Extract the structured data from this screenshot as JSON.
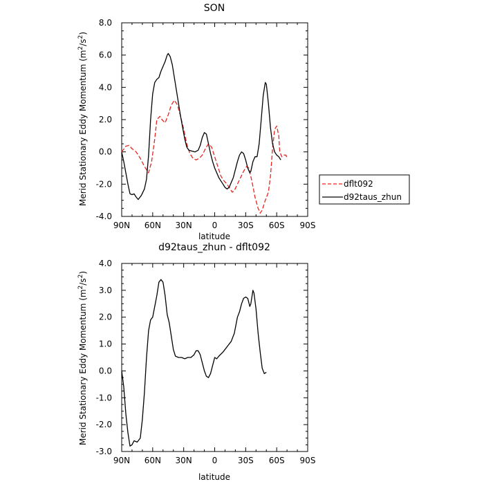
{
  "chart_data": [
    {
      "type": "line",
      "title": "SON",
      "xlabel": "latitude",
      "ylabel_main": "Merid Stationary Eddy Momentum (m",
      "ylabel_sup1": "2",
      "ylabel_mid": "/s",
      "ylabel_sup2": "2",
      "ylabel_end": ")",
      "xlim": [
        90,
        -90
      ],
      "ylim": [
        -4,
        8
      ],
      "x_ticks": [
        90,
        60,
        30,
        0,
        -30,
        -60,
        -90
      ],
      "x_tick_labels": [
        "90N",
        "60N",
        "30N",
        "0",
        "30S",
        "60S",
        "90S"
      ],
      "y_ticks": [
        -4,
        -2,
        0,
        2,
        4,
        6,
        8
      ],
      "y_tick_labels": [
        "-4.0",
        "-2.0",
        "0.0",
        "2.0",
        "4.0",
        "6.0",
        "8.0"
      ],
      "legend": {
        "placement": "right"
      },
      "series": [
        {
          "name": "dflt092",
          "color": "#e8231e",
          "dash": "dashed",
          "points": [
            [
              90,
              0
            ],
            [
              86,
              0.35
            ],
            [
              83,
              0.4
            ],
            [
              80,
              0.2
            ],
            [
              76,
              0.0
            ],
            [
              72,
              -0.4
            ],
            [
              68,
              -0.9
            ],
            [
              64,
              -1.3
            ],
            [
              61,
              -0.6
            ],
            [
              58,
              0.8
            ],
            [
              56,
              2.0
            ],
            [
              53,
              2.2
            ],
            [
              51,
              2.0
            ],
            [
              48,
              1.8
            ],
            [
              45,
              2.3
            ],
            [
              42,
              2.9
            ],
            [
              39,
              3.2
            ],
            [
              36,
              2.9
            ],
            [
              33,
              2.2
            ],
            [
              30,
              1.4
            ],
            [
              27,
              0.5
            ],
            [
              24,
              -0.1
            ],
            [
              21,
              -0.4
            ],
            [
              18,
              -0.5
            ],
            [
              15,
              -0.4
            ],
            [
              12,
              -0.2
            ],
            [
              9,
              0.2
            ],
            [
              6,
              0.5
            ],
            [
              3,
              0.3
            ],
            [
              0,
              -0.3
            ],
            [
              -3,
              -0.9
            ],
            [
              -6,
              -1.5
            ],
            [
              -9,
              -1.8
            ],
            [
              -12,
              -2.0
            ],
            [
              -15,
              -2.3
            ],
            [
              -17,
              -2.5
            ],
            [
              -19,
              -2.4
            ],
            [
              -22,
              -2.0
            ],
            [
              -25,
              -1.6
            ],
            [
              -28,
              -1.2
            ],
            [
              -31,
              -0.9
            ],
            [
              -33,
              -1.0
            ],
            [
              -36,
              -1.8
            ],
            [
              -39,
              -2.8
            ],
            [
              -42,
              -3.5
            ],
            [
              -44,
              -3.8
            ],
            [
              -46,
              -3.6
            ],
            [
              -49,
              -3.0
            ],
            [
              -52,
              -2.5
            ],
            [
              -54,
              -1.5
            ],
            [
              -56,
              0.2
            ],
            [
              -58,
              1.4
            ],
            [
              -60,
              1.6
            ],
            [
              -62,
              1.0
            ],
            [
              -63,
              0.0
            ],
            [
              -65,
              -0.3
            ],
            [
              -67,
              -0.2
            ],
            [
              -69,
              -0.2
            ],
            [
              -70,
              -0.4
            ]
          ]
        },
        {
          "name": "d92taus_zhun",
          "color": "#000000",
          "dash": "solid",
          "points": [
            [
              90,
              0
            ],
            [
              88,
              -0.6
            ],
            [
              86,
              -1.3
            ],
            [
              84,
              -2.0
            ],
            [
              82,
              -2.6
            ],
            [
              80,
              -2.65
            ],
            [
              78,
              -2.6
            ],
            [
              76,
              -2.8
            ],
            [
              74,
              -2.95
            ],
            [
              71,
              -2.7
            ],
            [
              68,
              -2.3
            ],
            [
              66,
              -1.7
            ],
            [
              64,
              -0.2
            ],
            [
              62,
              2.0
            ],
            [
              60,
              3.6
            ],
            [
              58,
              4.3
            ],
            [
              56,
              4.5
            ],
            [
              54,
              4.6
            ],
            [
              52,
              5.0
            ],
            [
              50,
              5.3
            ],
            [
              48,
              5.6
            ],
            [
              46,
              6.0
            ],
            [
              45,
              6.1
            ],
            [
              43,
              5.9
            ],
            [
              41,
              5.4
            ],
            [
              39,
              4.6
            ],
            [
              37,
              3.8
            ],
            [
              35,
              3.0
            ],
            [
              33,
              2.2
            ],
            [
              31,
              1.5
            ],
            [
              29,
              0.8
            ],
            [
              27,
              0.3
            ],
            [
              25,
              0.1
            ],
            [
              22,
              0.05
            ],
            [
              19,
              0.0
            ],
            [
              16,
              0.1
            ],
            [
              14,
              0.4
            ],
            [
              12,
              0.9
            ],
            [
              10,
              1.2
            ],
            [
              8,
              1.1
            ],
            [
              6,
              0.5
            ],
            [
              4,
              -0.1
            ],
            [
              2,
              -0.6
            ],
            [
              0,
              -1.0
            ],
            [
              -2,
              -1.3
            ],
            [
              -4,
              -1.6
            ],
            [
              -6,
              -1.8
            ],
            [
              -8,
              -2.0
            ],
            [
              -10,
              -2.2
            ],
            [
              -12,
              -2.3
            ],
            [
              -14,
              -2.2
            ],
            [
              -16,
              -1.9
            ],
            [
              -18,
              -1.6
            ],
            [
              -20,
              -1.1
            ],
            [
              -22,
              -0.6
            ],
            [
              -24,
              -0.2
            ],
            [
              -26,
              0.0
            ],
            [
              -28,
              -0.1
            ],
            [
              -30,
              -0.5
            ],
            [
              -32,
              -1.0
            ],
            [
              -34,
              -1.3
            ],
            [
              -35,
              -1.2
            ],
            [
              -37,
              -0.6
            ],
            [
              -39,
              -0.3
            ],
            [
              -41,
              -0.3
            ],
            [
              -43,
              0.5
            ],
            [
              -45,
              2.0
            ],
            [
              -47,
              3.5
            ],
            [
              -49,
              4.3
            ],
            [
              -50,
              4.2
            ],
            [
              -52,
              3.0
            ],
            [
              -54,
              1.5
            ],
            [
              -56,
              0.5
            ],
            [
              -58,
              0.0
            ],
            [
              -60,
              -0.2
            ],
            [
              -62,
              -0.3
            ],
            [
              -64,
              -0.5
            ]
          ]
        }
      ]
    },
    {
      "type": "line",
      "title": "d92taus_zhun - dflt092",
      "xlabel": "latitude",
      "ylabel_main": "Merid Stationary Eddy Momentum (m",
      "ylabel_sup1": "2",
      "ylabel_mid": "/s",
      "ylabel_sup2": "2",
      "ylabel_end": ")",
      "xlim": [
        90,
        -90
      ],
      "ylim": [
        -3,
        4
      ],
      "x_ticks": [
        90,
        60,
        30,
        0,
        -30,
        -60,
        -90
      ],
      "x_tick_labels": [
        "90N",
        "60N",
        "30N",
        "0",
        "30S",
        "60S",
        "90S"
      ],
      "y_ticks": [
        -3,
        -2,
        -1,
        0,
        1,
        2,
        3,
        4
      ],
      "y_tick_labels": [
        "-3.0",
        "-2.0",
        "-1.0",
        "0.0",
        "1.0",
        "2.0",
        "3.0",
        "4.0"
      ],
      "series": [
        {
          "color": "#000000",
          "dash": "solid",
          "points": [
            [
              90,
              0
            ],
            [
              88,
              -0.6
            ],
            [
              86,
              -1.6
            ],
            [
              84,
              -2.3
            ],
            [
              82,
              -2.8
            ],
            [
              80,
              -2.75
            ],
            [
              78,
              -2.6
            ],
            [
              75,
              -2.65
            ],
            [
              72,
              -2.5
            ],
            [
              70,
              -1.8
            ],
            [
              68,
              -0.8
            ],
            [
              66,
              0.5
            ],
            [
              64,
              1.5
            ],
            [
              62,
              1.9
            ],
            [
              60,
              2.0
            ],
            [
              58,
              2.4
            ],
            [
              56,
              2.8
            ],
            [
              54,
              3.3
            ],
            [
              52,
              3.4
            ],
            [
              50,
              3.3
            ],
            [
              48,
              2.8
            ],
            [
              46,
              2.1
            ],
            [
              44,
              1.8
            ],
            [
              42,
              1.3
            ],
            [
              40,
              0.8
            ],
            [
              38,
              0.55
            ],
            [
              35,
              0.5
            ],
            [
              32,
              0.5
            ],
            [
              29,
              0.45
            ],
            [
              26,
              0.5
            ],
            [
              23,
              0.5
            ],
            [
              20,
              0.6
            ],
            [
              18,
              0.75
            ],
            [
              16,
              0.75
            ],
            [
              14,
              0.6
            ],
            [
              12,
              0.3
            ],
            [
              10,
              0.0
            ],
            [
              8,
              -0.2
            ],
            [
              6,
              -0.25
            ],
            [
              4,
              -0.1
            ],
            [
              2,
              0.2
            ],
            [
              0,
              0.5
            ],
            [
              -2,
              0.45
            ],
            [
              -4,
              0.55
            ],
            [
              -8,
              0.7
            ],
            [
              -12,
              0.9
            ],
            [
              -16,
              1.1
            ],
            [
              -19,
              1.4
            ],
            [
              -22,
              2.0
            ],
            [
              -24,
              2.2
            ],
            [
              -26,
              2.5
            ],
            [
              -28,
              2.7
            ],
            [
              -30,
              2.75
            ],
            [
              -32,
              2.7
            ],
            [
              -34,
              2.4
            ],
            [
              -35,
              2.5
            ],
            [
              -37,
              3.0
            ],
            [
              -38,
              2.9
            ],
            [
              -40,
              2.3
            ],
            [
              -42,
              1.4
            ],
            [
              -44,
              0.7
            ],
            [
              -46,
              0.1
            ],
            [
              -48,
              -0.1
            ],
            [
              -50,
              -0.05
            ]
          ]
        }
      ]
    }
  ]
}
